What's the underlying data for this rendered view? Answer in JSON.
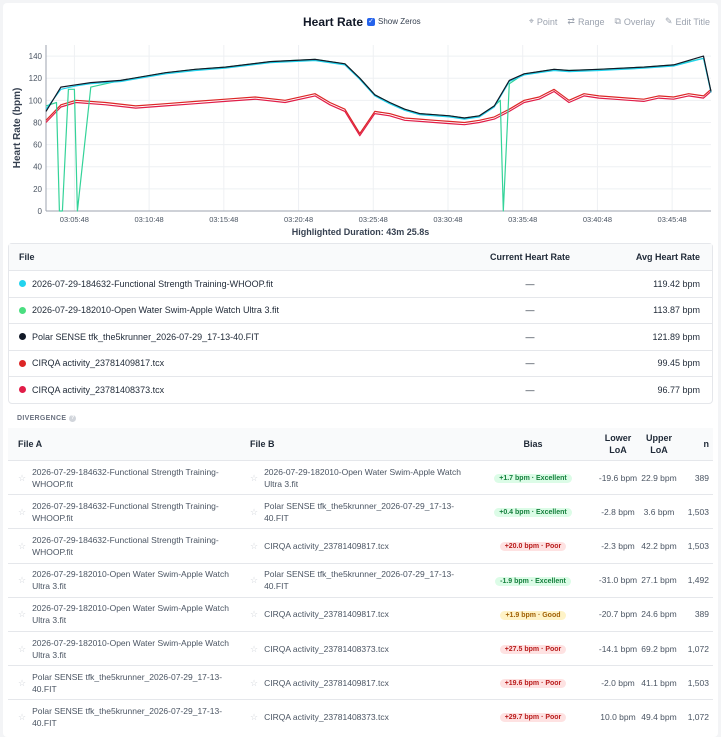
{
  "header": {
    "title": "Heart Rate",
    "show_zeros_label": "Show Zeros",
    "tools": [
      {
        "label": "Point",
        "icon": "pin-icon"
      },
      {
        "label": "Range",
        "icon": "range-icon"
      },
      {
        "label": "Overlay",
        "icon": "overlay-icon"
      },
      {
        "label": "Edit Title",
        "icon": "edit-icon"
      }
    ]
  },
  "chart_data": {
    "type": "line",
    "ylabel": "Heart Rate (bpm)",
    "ylim": [
      0,
      150
    ],
    "y_ticks": [
      "0",
      "20",
      "40",
      "60",
      "80",
      "100",
      "120",
      "140"
    ],
    "x_ticks": [
      "03:05:48",
      "03:10:48",
      "03:15:48",
      "03:20:48",
      "03:25:48",
      "03:30:48",
      "03:35:48",
      "03:40:48",
      "03:45:48"
    ],
    "x_range_minutes": [
      0,
      44.5
    ],
    "x_tick_offset_minutes": 1.9,
    "series": [
      {
        "color": "#34d399",
        "x": [
          0,
          0.7,
          0.9,
          1.1,
          1.5,
          1.9,
          2.1,
          3,
          5,
          8,
          10,
          12,
          15,
          18,
          20,
          21,
          22,
          23,
          24,
          25,
          26,
          27,
          28,
          29,
          30,
          30.4,
          30.6,
          31,
          32,
          33,
          34,
          35,
          37,
          40,
          42,
          44,
          44.5
        ],
        "y": [
          95,
          98,
          0,
          0,
          110,
          110,
          0,
          112,
          118,
          125,
          128,
          130,
          135,
          137,
          133,
          120,
          105,
          98,
          92,
          88,
          87,
          86,
          84,
          86,
          95,
          100,
          0,
          115,
          124,
          126,
          128,
          127,
          128,
          130,
          132,
          138,
          108
        ]
      },
      {
        "color": "#111827",
        "x": [
          0,
          1,
          2,
          3,
          5,
          8,
          10,
          12,
          15,
          18,
          20,
          21,
          22,
          23,
          24,
          25,
          26,
          27,
          28,
          29,
          30,
          31,
          32,
          33,
          34,
          35,
          37,
          40,
          42,
          44,
          44.5
        ],
        "y": [
          90,
          112,
          114,
          116,
          118,
          125,
          128,
          130,
          135,
          137,
          133,
          120,
          105,
          98,
          92,
          88,
          87,
          86,
          84,
          86,
          95,
          118,
          124,
          126,
          128,
          127,
          128,
          130,
          132,
          140,
          108
        ]
      },
      {
        "color": "#22d3ee",
        "x": [
          0,
          1,
          2,
          3,
          5,
          8,
          10,
          12,
          15,
          18,
          20,
          21,
          22,
          23,
          24,
          25,
          26,
          27,
          28,
          29,
          30,
          31,
          32,
          33,
          34,
          35,
          37,
          40,
          42,
          44,
          44.5
        ],
        "y": [
          92,
          110,
          113,
          115,
          117,
          124,
          127,
          129,
          134,
          136,
          132,
          119,
          104,
          97,
          91,
          87,
          86,
          85,
          83,
          85,
          94,
          117,
          123,
          125,
          127,
          126,
          127,
          129,
          131,
          138,
          107
        ]
      },
      {
        "color": "#dc2626",
        "x": [
          0,
          1,
          2,
          4,
          6,
          8,
          10,
          12,
          14,
          16,
          18,
          19,
          20,
          21,
          22,
          23,
          24,
          25,
          26,
          27,
          28,
          29,
          30,
          31,
          32,
          33,
          34,
          35,
          36,
          37,
          38,
          39,
          40,
          41,
          42,
          43,
          44,
          44.5
        ],
        "y": [
          82,
          96,
          100,
          98,
          95,
          97,
          99,
          101,
          103,
          100,
          106,
          98,
          92,
          70,
          90,
          88,
          84,
          83,
          82,
          81,
          80,
          82,
          85,
          92,
          100,
          103,
          110,
          100,
          106,
          104,
          103,
          102,
          101,
          104,
          103,
          106,
          104,
          110
        ]
      },
      {
        "color": "#e11d48",
        "x": [
          0,
          1,
          2,
          4,
          6,
          8,
          10,
          12,
          14,
          16,
          18,
          19,
          20,
          21,
          22,
          23,
          24,
          25,
          26,
          27,
          28,
          29,
          30,
          31,
          32,
          33,
          34,
          35,
          36,
          37,
          38,
          39,
          40,
          41,
          42,
          43,
          44,
          44.5
        ],
        "y": [
          80,
          94,
          98,
          96,
          93,
          95,
          97,
          99,
          101,
          98,
          104,
          96,
          90,
          68,
          88,
          86,
          82,
          81,
          80,
          79,
          78,
          80,
          83,
          90,
          98,
          101,
          108,
          98,
          104,
          102,
          101,
          100,
          99,
          102,
          101,
          104,
          102,
          108
        ]
      }
    ]
  },
  "highlighted_duration": "Highlighted Duration: 43m 25.8s",
  "files_table": {
    "headers": {
      "file": "File",
      "current": "Current Heart Rate",
      "avg": "Avg Heart Rate"
    },
    "rows": [
      {
        "name": "2026-07-29-184632-Functional Strength Training-WHOOP.fit",
        "color": "#22d3ee",
        "current": "—",
        "avg": "119.42 bpm"
      },
      {
        "name": "2026-07-29-182010-Open Water Swim-Apple Watch Ultra 3.fit",
        "color": "#4ade80",
        "current": "—",
        "avg": "113.87 bpm"
      },
      {
        "name": "Polar SENSE tfk_the5krunner_2026-07-29_17-13-40.FIT",
        "color": "#111827",
        "current": "—",
        "avg": "121.89 bpm"
      },
      {
        "name": "CIRQA activity_23781409817.tcx",
        "color": "#dc2626",
        "current": "—",
        "avg": "99.45 bpm"
      },
      {
        "name": "CIRQA activity_23781408373.tcx",
        "color": "#e11d48",
        "current": "—",
        "avg": "96.77 bpm"
      }
    ]
  },
  "divergence": {
    "label": "DIVERGENCE",
    "headers": {
      "file_a": "File A",
      "file_b": "File B",
      "bias": "Bias",
      "lower": "Lower LoA",
      "upper": "Upper LoA",
      "n": "n"
    },
    "rows": [
      {
        "a": "2026-07-29-184632-Functional Strength Training-WHOOP.fit",
        "b": "2026-07-29-182010-Open Water Swim-Apple Watch Ultra 3.fit",
        "bias": "+1.7 bpm · Excellent",
        "level": "excellent",
        "lower": "-19.6 bpm",
        "upper": "22.9 bpm",
        "n": "389"
      },
      {
        "a": "2026-07-29-184632-Functional Strength Training-WHOOP.fit",
        "b": "Polar SENSE tfk_the5krunner_2026-07-29_17-13-40.FIT",
        "bias": "+0.4 bpm · Excellent",
        "level": "excellent",
        "lower": "-2.8 bpm",
        "upper": "3.6 bpm",
        "n": "1,503"
      },
      {
        "a": "2026-07-29-184632-Functional Strength Training-WHOOP.fit",
        "b": "CIRQA activity_23781409817.tcx",
        "bias": "+20.0 bpm · Poor",
        "level": "poor",
        "lower": "-2.3 bpm",
        "upper": "42.2 bpm",
        "n": "1,503"
      },
      {
        "a": "2026-07-29-182010-Open Water Swim-Apple Watch Ultra 3.fit",
        "b": "Polar SENSE tfk_the5krunner_2026-07-29_17-13-40.FIT",
        "bias": "-1.9 bpm · Excellent",
        "level": "excellent",
        "lower": "-31.0 bpm",
        "upper": "27.1 bpm",
        "n": "1,492"
      },
      {
        "a": "2026-07-29-182010-Open Water Swim-Apple Watch Ultra 3.fit",
        "b": "CIRQA activity_23781409817.tcx",
        "bias": "+1.9 bpm · Good",
        "level": "good",
        "lower": "-20.7 bpm",
        "upper": "24.6 bpm",
        "n": "389"
      },
      {
        "a": "2026-07-29-182010-Open Water Swim-Apple Watch Ultra 3.fit",
        "b": "CIRQA activity_23781408373.tcx",
        "bias": "+27.5 bpm · Poor",
        "level": "poor",
        "lower": "-14.1 bpm",
        "upper": "69.2 bpm",
        "n": "1,072"
      },
      {
        "a": "Polar SENSE tfk_the5krunner_2026-07-29_17-13-40.FIT",
        "b": "CIRQA activity_23781409817.tcx",
        "bias": "+19.6 bpm · Poor",
        "level": "poor",
        "lower": "-2.0 bpm",
        "upper": "41.1 bpm",
        "n": "1,503"
      },
      {
        "a": "Polar SENSE tfk_the5krunner_2026-07-29_17-13-40.FIT",
        "b": "CIRQA activity_23781408373.tcx",
        "bias": "+29.7 bpm · Poor",
        "level": "poor",
        "lower": "10.0 bpm",
        "upper": "49.4 bpm",
        "n": "1,072"
      }
    ]
  }
}
